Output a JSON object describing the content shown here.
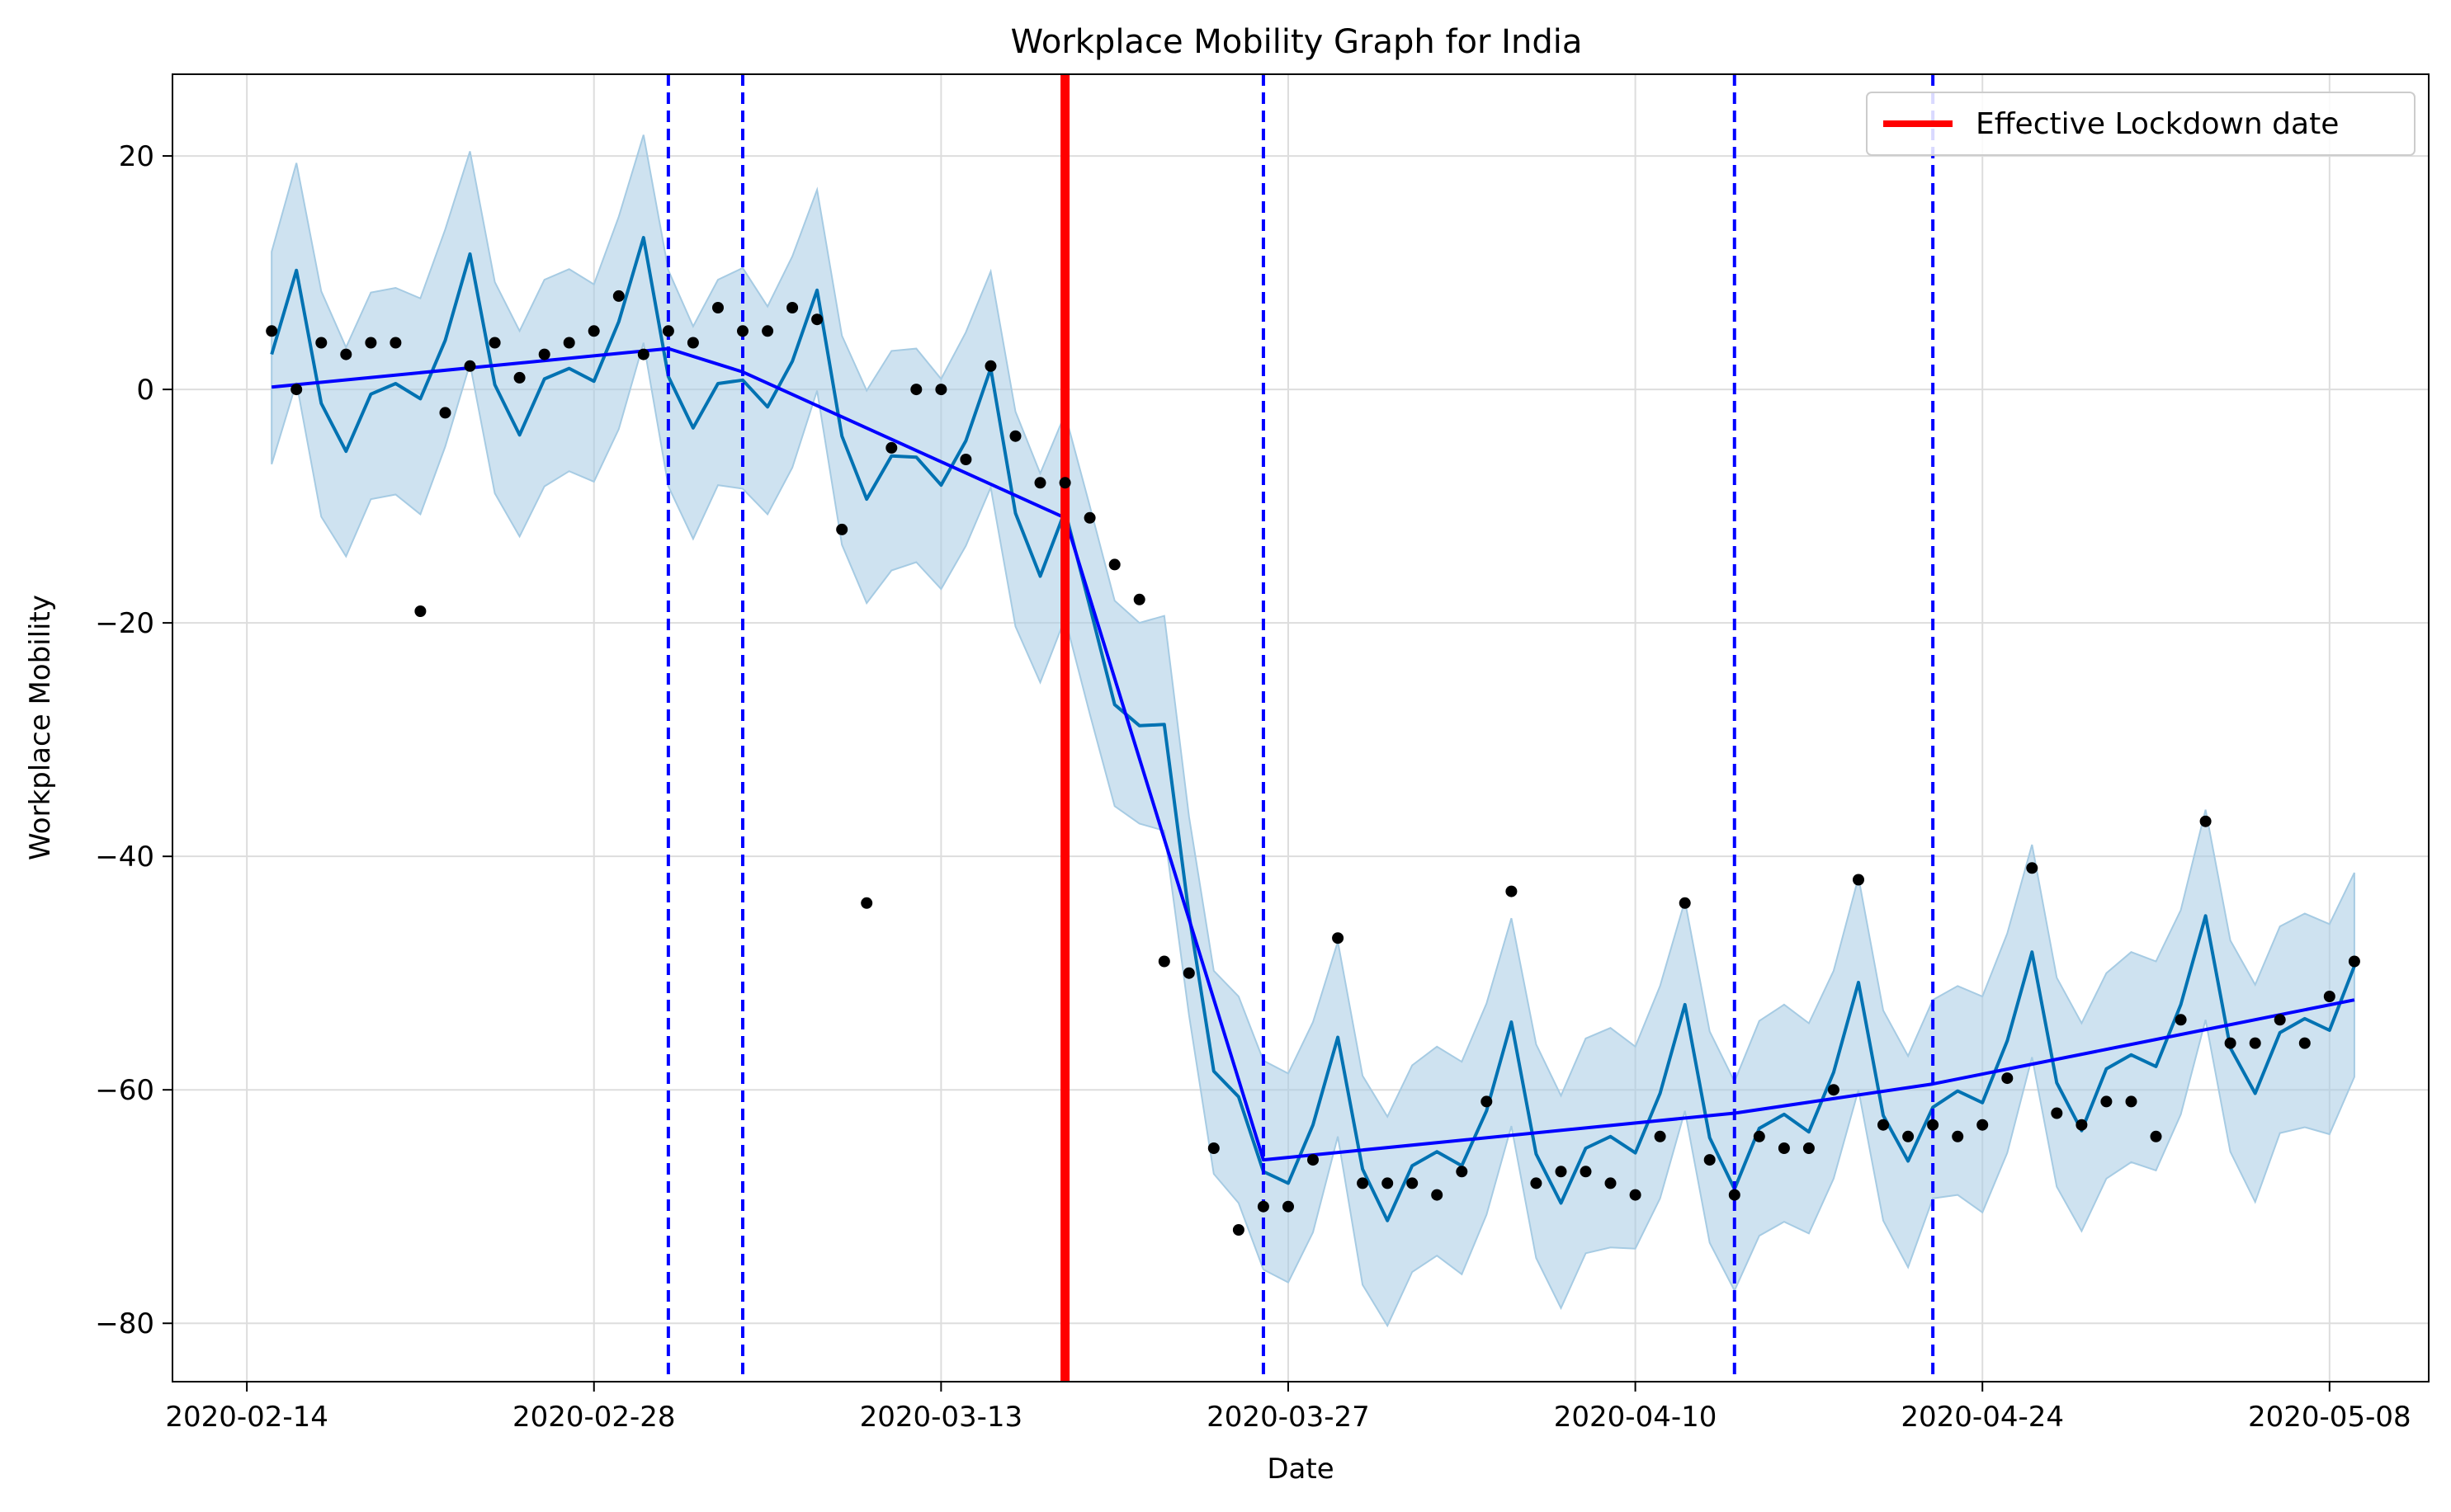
{
  "chart_data": {
    "type": "line",
    "title": "Workplace Mobility Graph for India",
    "xlabel": "Date",
    "ylabel": "Workplace Mobility",
    "xlim": [
      "2020-02-11",
      "2020-05-12"
    ],
    "ylim": [
      -85,
      27
    ],
    "x_ticks": [
      "2020-02-14",
      "2020-02-28",
      "2020-03-13",
      "2020-03-27",
      "2020-04-10",
      "2020-04-24",
      "2020-05-08"
    ],
    "y_ticks": [
      20,
      0,
      -20,
      -40,
      -60,
      -80
    ],
    "y_tick_labels": [
      "20",
      "0",
      "−20",
      "−40",
      "−60",
      "−80"
    ],
    "grid": true,
    "legend": {
      "position": "top-right",
      "entries": [
        {
          "label": "Effective Lockdown date",
          "color": "#ff0000"
        }
      ]
    },
    "colors": {
      "forecast": "#0072b2",
      "band": "#a6cbe3",
      "trend": "#0000ff",
      "lockdown": "#ff0000",
      "changepoints": "#0000ff",
      "observed": "#000000"
    },
    "lockdown_date": "2020-03-18",
    "changepoint_dates": [
      "2020-03-02",
      "2020-03-05",
      "2020-03-26",
      "2020-04-14",
      "2020-04-22"
    ],
    "start_date": "2020-02-15",
    "observed": [
      5,
      0,
      4,
      3,
      4,
      4,
      -19,
      -2,
      2,
      4,
      1,
      3,
      4,
      5,
      8,
      3,
      5,
      4,
      7,
      5,
      5,
      7,
      6,
      -12,
      -44,
      -5,
      0,
      0,
      -6,
      2,
      -4,
      -8,
      -8,
      -11,
      -15,
      -18,
      -49,
      -50,
      -65,
      -72,
      -70,
      -70,
      -66,
      -47,
      -68,
      -68,
      -68,
      -69,
      -67,
      -61,
      -43,
      -68,
      -67,
      -67,
      -68,
      -69,
      -64,
      -44,
      -66,
      -69,
      -64,
      -65,
      -65,
      -60,
      -42,
      -63,
      -64,
      -63,
      -64,
      -63,
      -59,
      -41,
      -62,
      -63,
      -61,
      -61,
      -64,
      -54,
      -37,
      -56,
      -56,
      -54,
      -56,
      -52,
      -49
    ],
    "forecast": [
      3,
      10.2,
      -1.2,
      -5.3,
      -0.4,
      0.5,
      -0.8,
      4.2,
      11.6,
      0.4,
      -3.9,
      0.9,
      1.8,
      0.7,
      5.8,
      13,
      1.1,
      -3.3,
      0.5,
      0.8,
      -1.5,
      2.4,
      8.5,
      -4,
      -9.4,
      -5.7,
      -5.8,
      -8.2,
      -4.4,
      1.8,
      -10.6,
      -16,
      -10.4,
      -18.6,
      -27,
      -28.8,
      -28.7,
      -45,
      -58.4,
      -60.6,
      -67,
      -68,
      -63,
      -55.5,
      -66.8,
      -71.2,
      -66.5,
      -65.3,
      -66.5,
      -61.8,
      -54.2,
      -65.5,
      -69.7,
      -65,
      -64,
      -65.4,
      -60.3,
      -52.7,
      -64.1,
      -68.5,
      -63.3,
      -62.1,
      -63.6,
      -58.5,
      -50.8,
      -62.2,
      -66.1,
      -61.5,
      -60.1,
      -61.1,
      -55.8,
      -48.2,
      -59.4,
      -63.5,
      -58.2,
      -57,
      -58,
      -52.7,
      -45.1,
      -56.4,
      -60.3,
      -55.1,
      -53.9,
      -54.9,
      -49.4
    ],
    "band_upper": [
      11.8,
      19.4,
      8.4,
      3.6,
      8.3,
      8.7,
      7.8,
      13.7,
      20.4,
      9.2,
      5,
      9.4,
      10.3,
      9,
      14.8,
      21.8,
      10.2,
      5.4,
      9.4,
      10.4,
      7.1,
      11.4,
      17.1,
      4.6,
      -0.1,
      3.3,
      3.5,
      0.9,
      4.9,
      10.1,
      -1.9,
      -7.2,
      -2.1,
      -10,
      -18.1,
      -20,
      -19.4,
      -36.6,
      -49.8,
      -52,
      -57.5,
      -58.6,
      -54.2,
      -47.3,
      -58.8,
      -62.3,
      -57.9,
      -56.3,
      -57.6,
      -52.6,
      -45.3,
      -56.1,
      -60.5,
      -55.6,
      -54.7,
      -56.3,
      -51.1,
      -43.8,
      -55,
      -59.3,
      -54.1,
      -52.7,
      -54.3,
      -49.8,
      -41.8,
      -53.2,
      -57.1,
      -52.3,
      -51.1,
      -52,
      -46.6,
      -39,
      -50.4,
      -54.3,
      -50,
      -48.2,
      -49,
      -44.6,
      -36,
      -47.2,
      -51,
      -46,
      -44.9,
      -45.8,
      -41.4
    ],
    "band_lower": [
      -6.4,
      0.6,
      -10.9,
      -14.3,
      -9.4,
      -9,
      -10.7,
      -4.9,
      2.2,
      -8.9,
      -12.6,
      -8.3,
      -7,
      -7.9,
      -3.4,
      4,
      -8.3,
      -12.8,
      -8.2,
      -8.5,
      -10.7,
      -6.7,
      -0.1,
      -13.3,
      -18.3,
      -15.5,
      -14.8,
      -17.1,
      -13.4,
      -8.4,
      -20.3,
      -25.1,
      -19.6,
      -27.8,
      -35.7,
      -37.2,
      -37.8,
      -53.6,
      -67.2,
      -69.7,
      -75.4,
      -76.5,
      -72.2,
      -64,
      -76.7,
      -80.2,
      -75.6,
      -74.2,
      -75.8,
      -70.7,
      -63.1,
      -74.4,
      -78.7,
      -74,
      -73.5,
      -73.6,
      -69.3,
      -61.8,
      -73.1,
      -77.2,
      -72.5,
      -71.3,
      -72.3,
      -67.6,
      -60,
      -71.2,
      -75.2,
      -69.3,
      -69,
      -70.5,
      -65.4,
      -57.2,
      -68.3,
      -72.1,
      -67.6,
      -66.2,
      -66.9,
      -62.1,
      -54,
      -65.3,
      -69.6,
      -63.7,
      -63.2,
      -63.8,
      -58.9
    ],
    "trend": [
      {
        "x": "2020-02-15",
        "y": 0.2
      },
      {
        "x": "2020-03-02",
        "y": 3.5
      },
      {
        "x": "2020-03-05",
        "y": 1.5
      },
      {
        "x": "2020-03-18",
        "y": -11
      },
      {
        "x": "2020-03-26",
        "y": -66
      },
      {
        "x": "2020-04-14",
        "y": -62
      },
      {
        "x": "2020-04-22",
        "y": -59.5
      },
      {
        "x": "2020-05-09",
        "y": -52.3
      }
    ]
  }
}
